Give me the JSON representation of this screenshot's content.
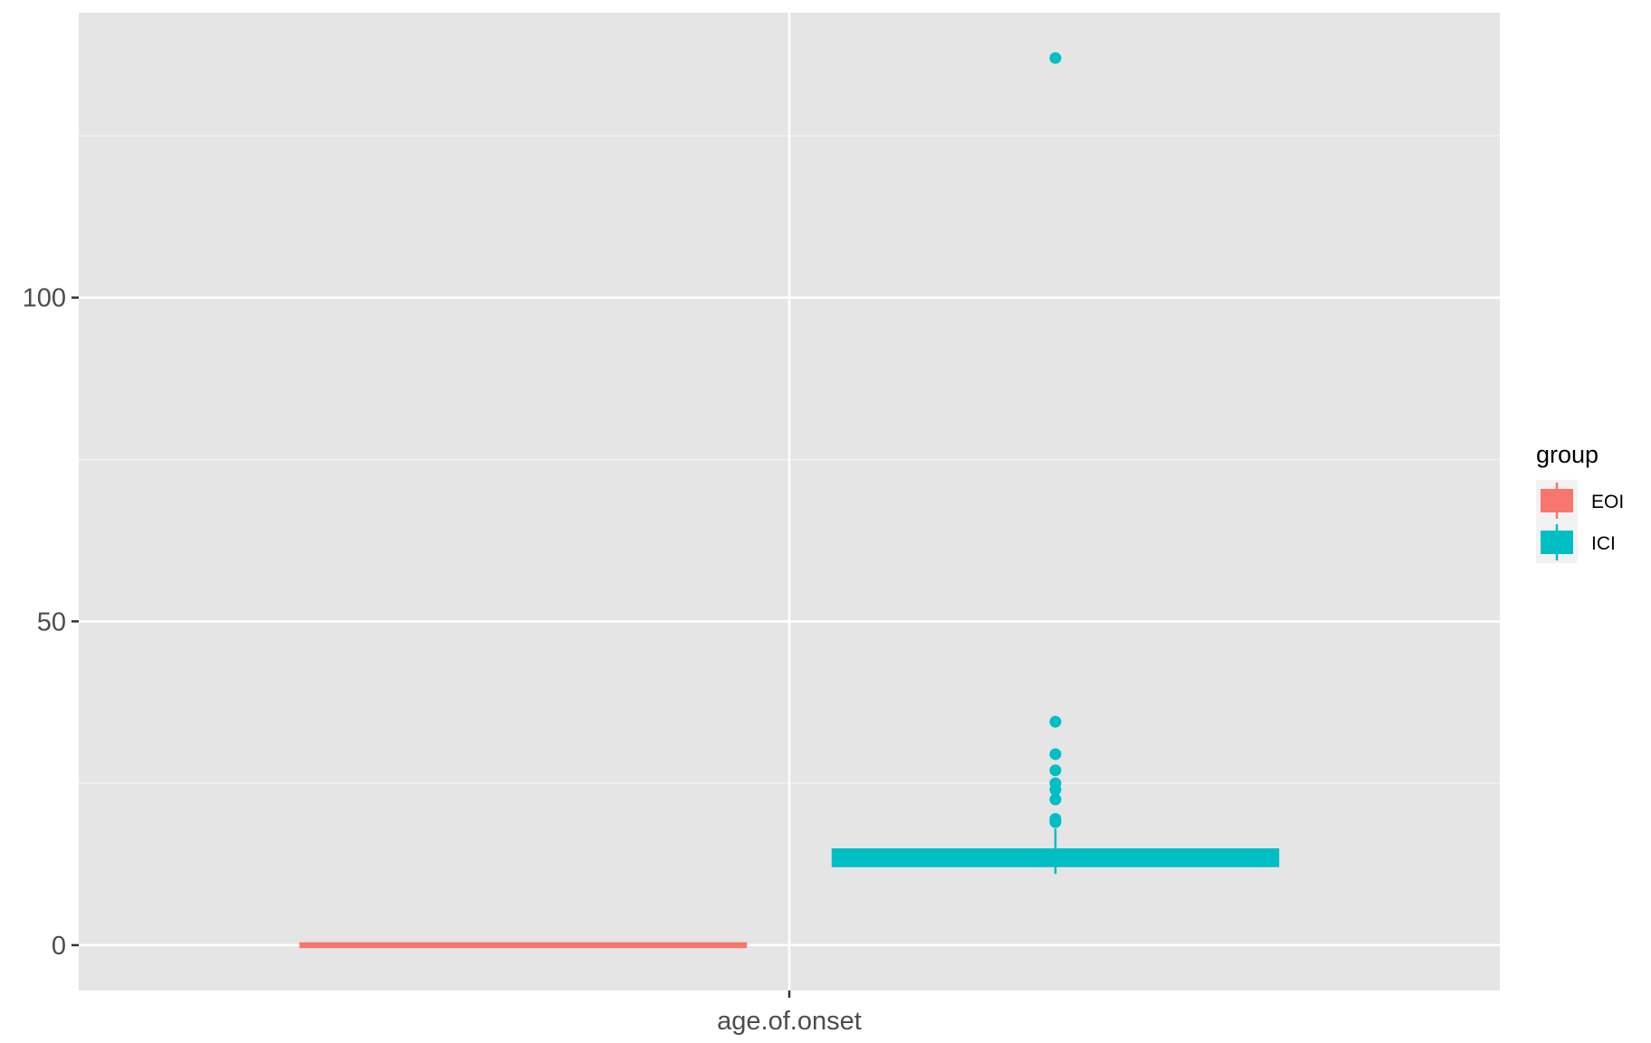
{
  "chart_data": {
    "type": "boxplot",
    "x_categories": [
      "age.of.onset"
    ],
    "ylim": [
      -7,
      144
    ],
    "y_ticks": [
      0,
      50,
      100
    ],
    "grid": true,
    "legend": {
      "title": "group",
      "position": "right",
      "entries": [
        {
          "name": "EOI",
          "color": "#F8766D"
        },
        {
          "name": "ICI",
          "color": "#00BFC4"
        }
      ]
    },
    "series": [
      {
        "name": "EOI",
        "color": "#F8766D",
        "category": "age.of.onset",
        "stats": {
          "lower_whisker": 0,
          "q1": 0,
          "median": 0,
          "q3": 0,
          "upper_whisker": 0
        },
        "outliers": []
      },
      {
        "name": "ICI",
        "color": "#00BFC4",
        "category": "age.of.onset",
        "stats": {
          "lower_whisker": 11,
          "q1": 12.5,
          "median": 13.5,
          "q3": 14.5,
          "upper_whisker": 18
        },
        "outliers": [
          19,
          19.5,
          22.5,
          24,
          25,
          27,
          29.5,
          34.5,
          137
        ]
      }
    ]
  }
}
